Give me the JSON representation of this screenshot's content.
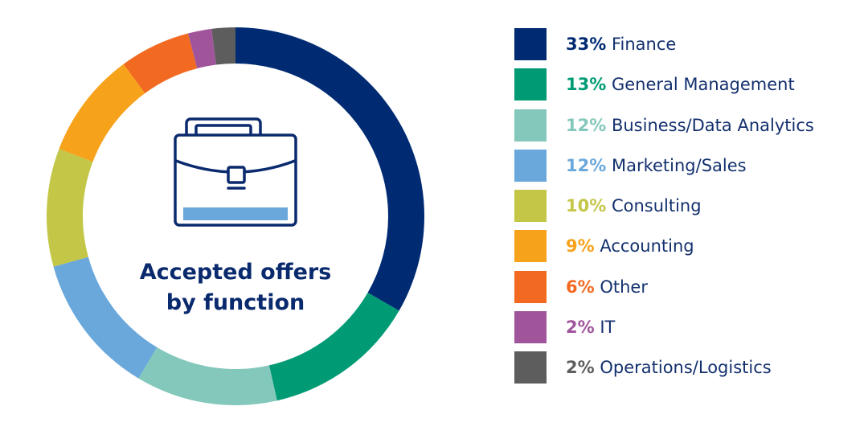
{
  "chart_data": {
    "type": "pie",
    "title": "Accepted offers by function",
    "title_lines": [
      "Accepted offers",
      "by function"
    ],
    "donut": true,
    "legend_position": "right",
    "icon": "briefcase-icon",
    "categories": [
      "Finance",
      "General Management",
      "Business/Data Analytics",
      "Marketing/Sales",
      "Consulting",
      "Accounting",
      "Other",
      "IT",
      "Operations/Logistics"
    ],
    "values": [
      33,
      13,
      12,
      12,
      10,
      9,
      6,
      2,
      2
    ],
    "value_labels": [
      "33%",
      "13%",
      "12%",
      "12%",
      "10%",
      "9%",
      "6%",
      "2%",
      "2%"
    ],
    "colors": [
      "#002b73",
      "#009b74",
      "#83c8bb",
      "#6aa8dc",
      "#c4c648",
      "#f7a21b",
      "#f26a21",
      "#a0559b",
      "#5d5d5d"
    ]
  }
}
